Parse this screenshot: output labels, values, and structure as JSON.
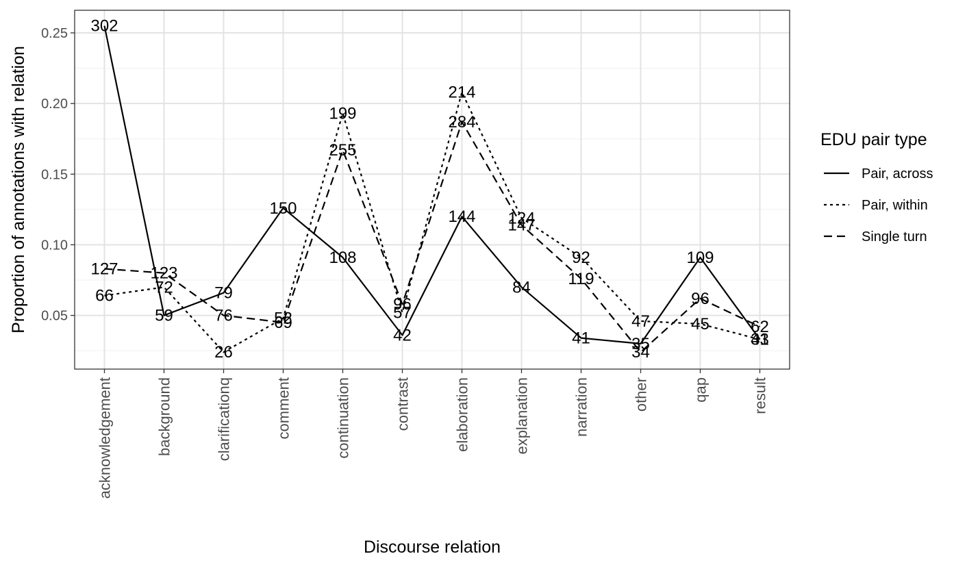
{
  "chart_data": {
    "type": "line",
    "title": "",
    "xlabel": "Discourse relation",
    "ylabel": "Proportion of annotations with relation",
    "categories": [
      "acknowledgement",
      "background",
      "clarificationq",
      "comment",
      "continuation",
      "contrast",
      "elaboration",
      "explanation",
      "narration",
      "other",
      "qap",
      "result"
    ],
    "yticks": [
      0.05,
      0.1,
      0.15,
      0.2,
      0.25
    ],
    "ytick_labels": [
      "0.05",
      "0.10",
      "0.15",
      "0.20",
      "0.25"
    ],
    "ylim": [
      0.012,
      0.266
    ],
    "grid": true,
    "legend": {
      "title": "EDU pair type",
      "position": "right"
    },
    "series": [
      {
        "name": "Pair, across",
        "dash": "solid",
        "values": [
          0.255,
          0.05,
          0.066,
          0.126,
          0.091,
          0.036,
          0.12,
          0.07,
          0.034,
          0.03,
          0.091,
          0.033
        ],
        "labels": [
          "302",
          "59",
          "79",
          "150",
          "108",
          "42",
          "144",
          "84",
          "41",
          "35",
          "109",
          "41"
        ]
      },
      {
        "name": "Pair, within",
        "dash": "dotted",
        "values": [
          0.064,
          0.07,
          0.024,
          0.048,
          0.193,
          0.052,
          0.208,
          0.119,
          0.091,
          0.046,
          0.044,
          0.033
        ],
        "labels": [
          "66",
          "72",
          "26",
          "52",
          "199",
          "57",
          "214",
          "124",
          "92",
          "47",
          "45",
          "33"
        ]
      },
      {
        "name": "Single turn",
        "dash": "dashed",
        "values": [
          0.083,
          0.08,
          0.05,
          0.045,
          0.167,
          0.058,
          0.187,
          0.114,
          0.076,
          0.024,
          0.062,
          0.042
        ],
        "labels": [
          "127",
          "123",
          "76",
          "69",
          "255",
          "96",
          "284",
          "147",
          "119",
          "34",
          "96",
          "62"
        ]
      }
    ]
  }
}
